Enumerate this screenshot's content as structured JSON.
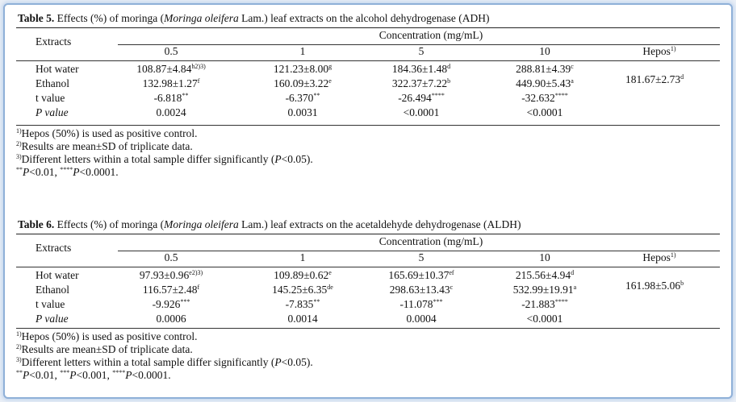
{
  "tables": [
    {
      "label": "Table 5.",
      "caption_before": " Effects (%) of moringa (",
      "caption_italic": "Moringa oleifera",
      "caption_after": " Lam.) leaf extracts on the alcohol dehydrogenase (ADH)",
      "col_header": "Extracts",
      "concentration_header": "Concentration (mg/mL)",
      "concentrations": [
        "0.5",
        "1",
        "5",
        "10"
      ],
      "hepos_header": "Hepos",
      "hepos_sup": "1)",
      "hepos_value": "181.67±2.73",
      "hepos_value_sup": "d",
      "rows": [
        {
          "label": "Hot water",
          "cells": [
            [
              "108.87±4.84",
              "h2)3)"
            ],
            [
              "121.23±8.00",
              "g"
            ],
            [
              "184.36±1.48",
              "d"
            ],
            [
              "288.81±4.39",
              "c"
            ]
          ]
        },
        {
          "label": "Ethanol",
          "cells": [
            [
              "132.98±1.27",
              "f"
            ],
            [
              "160.09±3.22",
              "e"
            ],
            [
              "322.37±7.22",
              "b"
            ],
            [
              "449.90±5.43",
              "a"
            ]
          ]
        },
        {
          "label": "t value",
          "cells": [
            [
              "-6.818",
              "**"
            ],
            [
              "-6.370",
              "**"
            ],
            [
              "-26.494",
              "****"
            ],
            [
              "-32.632",
              "****"
            ]
          ]
        },
        {
          "label": "P value",
          "cells": [
            [
              "0.0024",
              ""
            ],
            [
              "0.0031",
              ""
            ],
            [
              "<0.0001",
              ""
            ],
            [
              "<0.0001",
              ""
            ]
          ]
        }
      ],
      "notes": [
        {
          "sup": "1)",
          "text": "Hepos (50%) is used as positive control."
        },
        {
          "sup": "2)",
          "text": "Results are mean±SD of triplicate data."
        },
        {
          "sup": "3)",
          "text": "Different letters within a total sample differ significantly (",
          "ital": "P",
          "tail": "<0.05)."
        }
      ],
      "sig_note": [
        {
          "sup": "**",
          "ital": "P",
          "text": "<0.01, "
        },
        {
          "sup": "****",
          "ital": "P",
          "text": "<0.0001."
        }
      ]
    },
    {
      "label": "Table 6.",
      "caption_before": " Effects (%) of moringa (",
      "caption_italic": "Moringa oleifera",
      "caption_after": " Lam.) leaf extracts on the acetaldehyde dehydrogenase (ALDH)",
      "col_header": "Extracts",
      "concentration_header": "Concentration (mg/mL)",
      "concentrations": [
        "0.5",
        "1",
        "5",
        "10"
      ],
      "hepos_header": "Hepos",
      "hepos_sup": "1)",
      "hepos_value": "161.98±5.06",
      "hepos_value_sup": "b",
      "rows": [
        {
          "label": "Hot water",
          "cells": [
            [
              "97.93±0.96",
              "e2)3)"
            ],
            [
              "109.89±0.62",
              "e"
            ],
            [
              "165.69±10.37",
              "ef"
            ],
            [
              "215.56±4.94",
              "d"
            ]
          ]
        },
        {
          "label": "Ethanol",
          "cells": [
            [
              "116.57±2.48",
              "f"
            ],
            [
              "145.25±6.35",
              "de"
            ],
            [
              "298.63±13.43",
              "c"
            ],
            [
              "532.99±19.91",
              "a"
            ]
          ]
        },
        {
          "label": "t value",
          "cells": [
            [
              "-9.926",
              "***"
            ],
            [
              "-7.835",
              "**"
            ],
            [
              "-11.078",
              "***"
            ],
            [
              "-21.883",
              "****"
            ]
          ]
        },
        {
          "label": "P value",
          "cells": [
            [
              "0.0006",
              ""
            ],
            [
              "0.0014",
              ""
            ],
            [
              "0.0004",
              ""
            ],
            [
              "<0.0001",
              ""
            ]
          ]
        }
      ],
      "notes": [
        {
          "sup": "1)",
          "text": "Hepos (50%) is used as positive control."
        },
        {
          "sup": "2)",
          "text": "Results are mean±SD of triplicate data."
        },
        {
          "sup": "3)",
          "text": "Different letters within a total sample differ significantly (",
          "ital": "P",
          "tail": "<0.05)."
        }
      ],
      "sig_note": [
        {
          "sup": "**",
          "ital": "P",
          "text": "<0.01, "
        },
        {
          "sup": "***",
          "ital": "P",
          "text": "<0.001, "
        },
        {
          "sup": "****",
          "ital": "P",
          "text": "<0.0001."
        }
      ]
    }
  ]
}
